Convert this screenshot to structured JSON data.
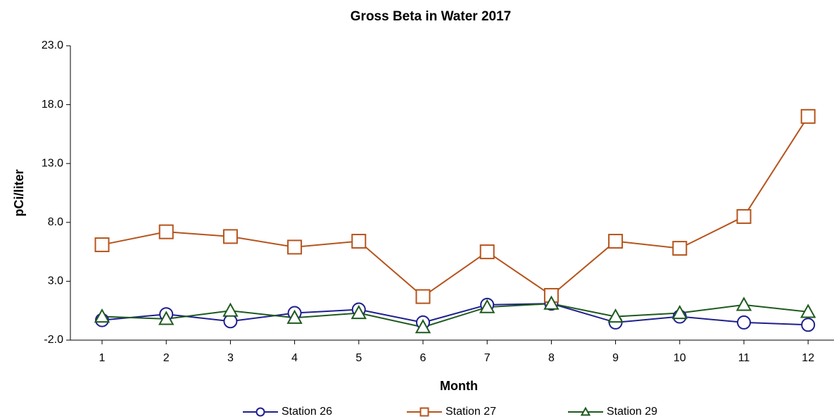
{
  "chart_data": {
    "type": "line",
    "title": "Gross Beta in Water 2017",
    "x_label": "Month",
    "y_label": "pCi/liter",
    "categories": [
      "1",
      "2",
      "3",
      "4",
      "5",
      "6",
      "7",
      "8",
      "9",
      "10",
      "11",
      "12"
    ],
    "series": [
      {
        "name": "Station 26",
        "color": "#1f1f8f",
        "marker": "circle",
        "values": [
          -0.3,
          0.2,
          -0.4,
          0.3,
          0.6,
          -0.5,
          1.0,
          1.1,
          -0.5,
          0.0,
          -0.5,
          -0.7
        ]
      },
      {
        "name": "Station 27",
        "color": "#b5541c",
        "marker": "square",
        "values": [
          6.1,
          7.2,
          6.8,
          5.9,
          6.4,
          1.7,
          5.5,
          1.8,
          6.4,
          5.8,
          8.5,
          17.0
        ]
      },
      {
        "name": "Station 29",
        "color": "#1e5a1e",
        "marker": "triangle",
        "values": [
          0.0,
          -0.2,
          0.5,
          -0.1,
          0.3,
          -0.9,
          0.8,
          1.1,
          0.0,
          0.3,
          1.0,
          0.4
        ]
      }
    ],
    "ylim": [
      -2,
      23
    ],
    "yticks": [
      {
        "value": -2,
        "label": "-2.0"
      },
      {
        "value": 3,
        "label": "3.0"
      },
      {
        "value": 8,
        "label": "8.0"
      },
      {
        "value": 13,
        "label": "13.0"
      },
      {
        "value": 18,
        "label": "18.0"
      },
      {
        "value": 23,
        "label": "23.0"
      }
    ],
    "grid": false,
    "legend": "bottom"
  }
}
